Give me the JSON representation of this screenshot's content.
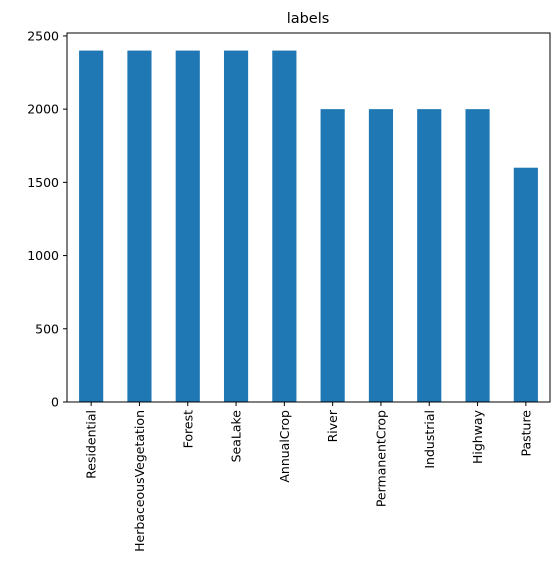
{
  "chart_data": {
    "type": "bar",
    "title": "labels",
    "categories": [
      "Residential",
      "HerbaceousVegetation",
      "Forest",
      "SeaLake",
      "AnnualCrop",
      "River",
      "PermanentCrop",
      "Industrial",
      "Highway",
      "Pasture"
    ],
    "values": [
      2400,
      2400,
      2400,
      2400,
      2400,
      2000,
      2000,
      2000,
      2000,
      1600
    ],
    "color": "#1f77b4",
    "ylim": [
      0,
      2520
    ],
    "yticks": [
      0,
      500,
      1000,
      1500,
      2000,
      2500
    ],
    "grid": false
  }
}
